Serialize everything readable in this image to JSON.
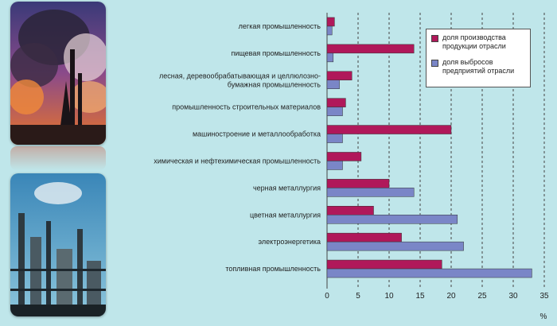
{
  "colors": {
    "production": "#b0185a",
    "emissions": "#7a86c7",
    "background": "#bfe6ea"
  },
  "images": {
    "top": "industrial-smokestacks-photo",
    "bottom": "refinery-plant-photo"
  },
  "chart_data": {
    "type": "bar",
    "orientation": "horizontal",
    "categories": [
      "легкая промышленность",
      "пищевая промышленность",
      "лесная, деревообрабатывающая и целлюлозно-бумажная промышленность",
      "промышленность строительных материалов",
      "машиностроение и металлообработка",
      "химическая и нефтехимическая промышленность",
      "черная металлургия",
      "цветная металлургия",
      "электроэнергетика",
      "топливная промышленность"
    ],
    "category_lines": [
      [
        "легкая промышленность"
      ],
      [
        "пищевая промышленность"
      ],
      [
        "лесная, деревообрабатывающая и целлюлозно-",
        "бумажная промышленность"
      ],
      [
        "промышленность строительных материалов"
      ],
      [
        "машиностроение и металлообработка"
      ],
      [
        "химическая и нефтехимическая промышленность"
      ],
      [
        "черная металлургия"
      ],
      [
        "цветная металлургия"
      ],
      [
        "электроэнергетика"
      ],
      [
        "топливная промышленность"
      ]
    ],
    "series": [
      {
        "name": "доля производства продукции отрасли",
        "values": [
          1.2,
          14,
          4,
          3,
          20,
          5.5,
          10,
          7.5,
          12,
          18.5
        ]
      },
      {
        "name": "доля выбросов предприятий отрасли",
        "values": [
          0.8,
          1,
          2,
          2.5,
          2.5,
          2.5,
          14,
          21,
          22,
          33
        ]
      }
    ],
    "xlim": [
      0,
      35
    ],
    "xticks": [
      0,
      5,
      10,
      15,
      20,
      25,
      30,
      35
    ],
    "xunit": "%",
    "grid": "vertical dashed",
    "legend_position": "top-right"
  }
}
